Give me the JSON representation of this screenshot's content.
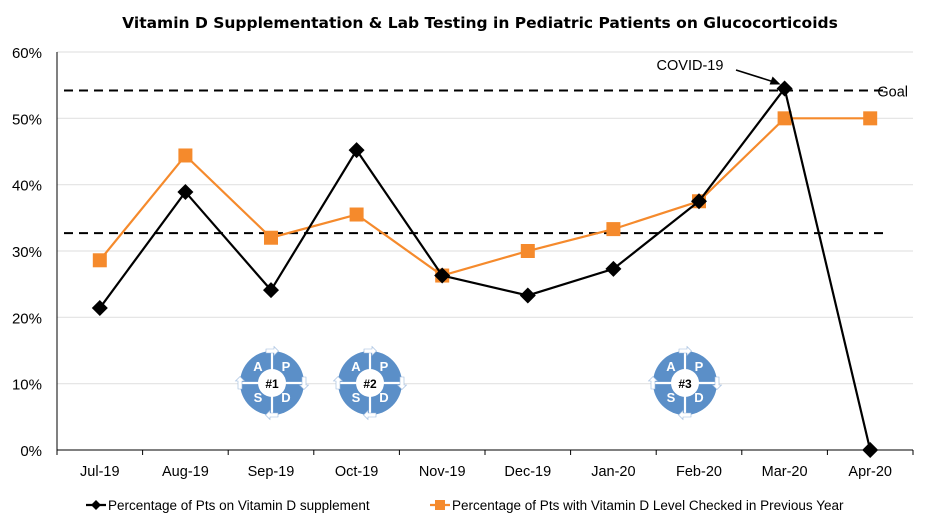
{
  "chart_data": {
    "type": "line",
    "title": "Vitamin D Supplementation & Lab Testing in Pediatric Patients on Glucocorticoids",
    "xlabel": "",
    "ylabel": "",
    "categories": [
      "Jul-19",
      "Aug-19",
      "Sep-19",
      "Oct-19",
      "Nov-19",
      "Dec-19",
      "Jan-20",
      "Feb-20",
      "Mar-20",
      "Apr-20"
    ],
    "ylim": [
      0,
      60
    ],
    "yticks": [
      0,
      10,
      20,
      30,
      40,
      50,
      60
    ],
    "ytick_labels": [
      "0%",
      "10%",
      "20%",
      "30%",
      "40%",
      "50%",
      "60%"
    ],
    "grid": true,
    "legend_position": "bottom",
    "series": [
      {
        "name": "Percentage of Pts on Vitamin D supplement",
        "color": "#000000",
        "marker": "diamond",
        "values": [
          21.4,
          38.9,
          24.1,
          45.2,
          26.3,
          23.3,
          27.3,
          37.5,
          54.5,
          0
        ]
      },
      {
        "name": "Percentage of Pts with Vitamin D Level Checked in Previous Year",
        "color": "#f58a2c",
        "marker": "square",
        "values": [
          28.6,
          44.4,
          32.0,
          35.5,
          26.3,
          30.0,
          33.3,
          37.5,
          50.0,
          50.0
        ]
      }
    ],
    "reference_lines": [
      {
        "name": "Goal",
        "value": 54.2,
        "style": "dashed",
        "label": "Goal"
      },
      {
        "name": "Baseline",
        "value": 32.7,
        "style": "dashed",
        "label": ""
      }
    ],
    "annotations": [
      {
        "text": "COVID-19",
        "points_to": "Mar-20",
        "series": 0
      }
    ],
    "pdsa_cycles": [
      {
        "label": "#1",
        "between": [
          "Sep-19"
        ],
        "letters": [
          "A",
          "P",
          "S",
          "D"
        ]
      },
      {
        "label": "#2",
        "between": [
          "Oct-19"
        ],
        "letters": [
          "A",
          "P",
          "S",
          "D"
        ]
      },
      {
        "label": "#3",
        "between": [
          "Jan-20"
        ],
        "letters": [
          "A",
          "P",
          "S",
          "D"
        ]
      }
    ],
    "colors": {
      "pdsa_fill": "#5b8fc8",
      "gridline": "#e3e3e3",
      "axis": "#000000"
    }
  }
}
